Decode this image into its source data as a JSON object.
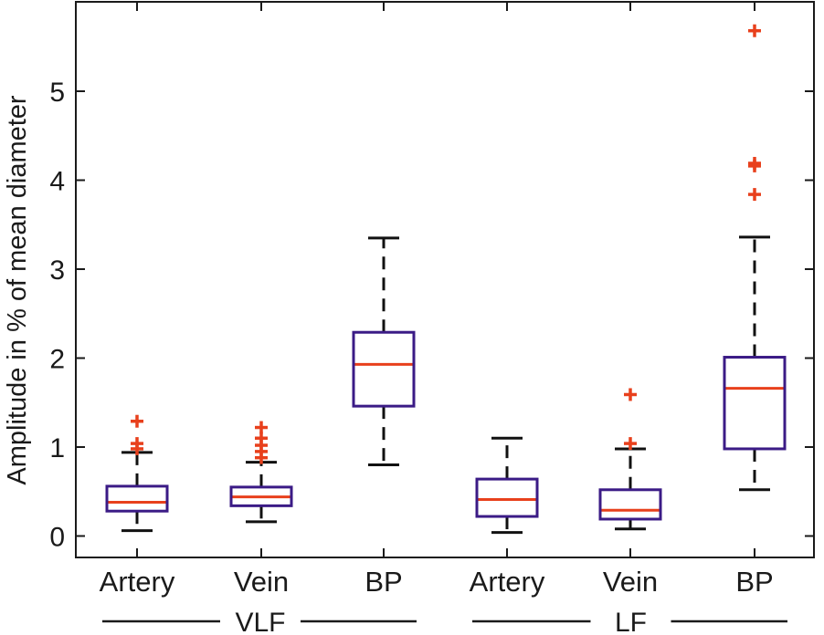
{
  "chart_data": {
    "type": "box",
    "title": "",
    "xlabel": "",
    "ylabel": "Amplitude in % of mean diameter",
    "ylim": [
      -0.25,
      5.95
    ],
    "yticks": [
      0,
      1,
      2,
      3,
      4,
      5
    ],
    "categories": [
      "Artery",
      "Vein",
      "BP",
      "Artery",
      "Vein",
      "BP"
    ],
    "groups": [
      {
        "label": "VLF",
        "members": [
          0,
          1,
          2
        ]
      },
      {
        "label": "LF",
        "members": [
          3,
          4,
          5
        ]
      }
    ],
    "boxes": [
      {
        "category": "Artery",
        "group": "VLF",
        "whisker_low": 0.06,
        "q1": 0.28,
        "median": 0.38,
        "q3": 0.56,
        "whisker_high": 0.94,
        "outliers": [
          0.98,
          1.04,
          1.29
        ]
      },
      {
        "category": "Vein",
        "group": "VLF",
        "whisker_low": 0.16,
        "q1": 0.34,
        "median": 0.44,
        "q3": 0.55,
        "whisker_high": 0.83,
        "outliers": [
          0.88,
          0.95,
          1.02,
          1.1,
          1.22
        ]
      },
      {
        "category": "BP",
        "group": "VLF",
        "whisker_low": 0.8,
        "q1": 1.46,
        "median": 1.93,
        "q3": 2.29,
        "whisker_high": 3.35,
        "outliers": []
      },
      {
        "category": "Artery",
        "group": "LF",
        "whisker_low": 0.04,
        "q1": 0.22,
        "median": 0.41,
        "q3": 0.64,
        "whisker_high": 1.1,
        "outliers": []
      },
      {
        "category": "Vein",
        "group": "LF",
        "whisker_low": 0.08,
        "q1": 0.19,
        "median": 0.29,
        "q3": 0.52,
        "whisker_high": 0.98,
        "outliers": [
          1.04,
          1.59
        ]
      },
      {
        "category": "BP",
        "group": "LF",
        "whisker_low": 0.52,
        "q1": 0.98,
        "median": 1.66,
        "q3": 2.01,
        "whisker_high": 3.36,
        "outliers": [
          3.84,
          4.16,
          4.19,
          5.68
        ]
      }
    ],
    "colors": {
      "box": "#3b1b86",
      "median": "#e8401c",
      "outlier": "#e8401c",
      "whisker": "#111111",
      "axis": "#1a1a1a"
    },
    "grid": false
  }
}
